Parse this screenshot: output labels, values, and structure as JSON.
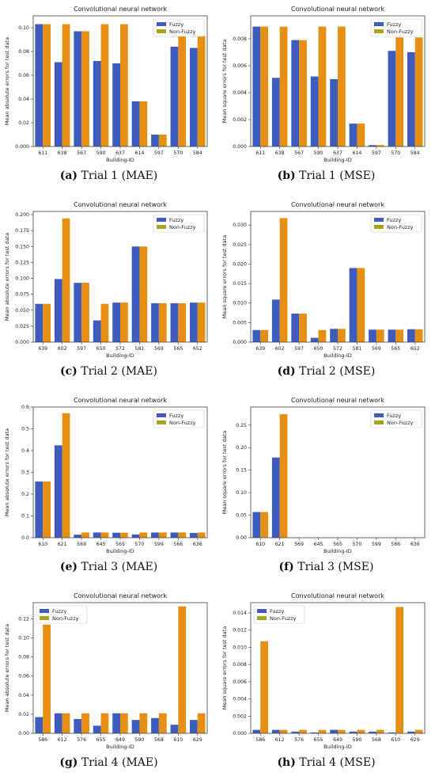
{
  "colors": {
    "fuzzy": "#3e5cbe",
    "nonfuzzy": "#e78f12",
    "nonfuzzy_legend": "#a8a51d",
    "frame": "#444444"
  },
  "chart_data": [
    {
      "id": "p1",
      "type": "bar",
      "title": "Convolutional neural network",
      "xlabel": "Building-ID",
      "ylabel": "Mean absolute errors for test data",
      "ylim": [
        0,
        0.11
      ],
      "yticks": [
        "0.000",
        "0.02",
        "0.04",
        "0.06",
        "0.08",
        "0.10"
      ],
      "yticks_values": [
        0,
        0.02,
        0.04,
        0.06,
        0.08,
        0.1
      ],
      "categories": [
        "611",
        "638",
        "567",
        "590",
        "637",
        "614",
        "597",
        "570",
        "584"
      ],
      "series": [
        {
          "name": "Fuzzy",
          "values": [
            0.103,
            0.071,
            0.097,
            0.072,
            0.07,
            0.038,
            0.01,
            0.084,
            0.083
          ]
        },
        {
          "name": "Non-Fuzzy",
          "values": [
            0.103,
            0.103,
            0.097,
            0.103,
            0.103,
            0.038,
            0.01,
            0.093,
            0.093
          ]
        }
      ],
      "legend": "top-right",
      "caption_label": "(a)",
      "caption_text": "Trial 1 (MAE)"
    },
    {
      "id": "p2",
      "type": "bar",
      "title": "Convolutional neural network",
      "xlabel": "Building-ID",
      "ylabel": "Mean square errors for test data",
      "ylim": [
        0,
        0.0097
      ],
      "yticks": [
        "0.000",
        "0.002",
        "0.004",
        "0.006",
        "0.008"
      ],
      "yticks_values": [
        0,
        0.002,
        0.004,
        0.006,
        0.008
      ],
      "categories": [
        "611",
        "638",
        "567",
        "590",
        "637",
        "614",
        "597",
        "570",
        "584"
      ],
      "series": [
        {
          "name": "Fuzzy",
          "values": [
            0.0089,
            0.0051,
            0.0079,
            0.0052,
            0.005,
            0.0017,
            0.0001,
            0.0071,
            0.007
          ]
        },
        {
          "name": "Non-Fuzzy",
          "values": [
            0.0089,
            0.0089,
            0.0079,
            0.0089,
            0.0089,
            0.0017,
            0.0001,
            0.0081,
            0.0081
          ]
        }
      ],
      "legend": "top-right",
      "caption_label": "(b)",
      "caption_text": "Trial 1 (MSE)"
    },
    {
      "id": "p3",
      "type": "bar",
      "title": "Convolutional neural network",
      "xlabel": "Building-ID",
      "ylabel": "Mean absolute errors for test data",
      "ylim": [
        0,
        0.205
      ],
      "yticks": [
        "0.000",
        "0.025",
        "0.050",
        "0.075",
        "0.100",
        "0.125",
        "0.150",
        "0.175",
        "0.200"
      ],
      "yticks_values": [
        0,
        0.025,
        0.05,
        0.075,
        0.1,
        0.125,
        0.15,
        0.175,
        0.2
      ],
      "categories": [
        "639",
        "602",
        "597",
        "650",
        "572",
        "581",
        "569",
        "565",
        "652"
      ],
      "series": [
        {
          "name": "Fuzzy",
          "values": [
            0.06,
            0.099,
            0.093,
            0.034,
            0.062,
            0.15,
            0.061,
            0.061,
            0.062
          ]
        },
        {
          "name": "Non-Fuzzy",
          "values": [
            0.06,
            0.194,
            0.093,
            0.06,
            0.062,
            0.15,
            0.061,
            0.061,
            0.062
          ]
        }
      ],
      "legend": "top-right",
      "caption_label": "(c)",
      "caption_text": "Trial 2 (MAE)"
    },
    {
      "id": "p4",
      "type": "bar",
      "title": "Convolutional neural network",
      "xlabel": "Building-ID",
      "ylabel": "Mean square errors for test data",
      "ylim": [
        0,
        0.0335
      ],
      "yticks": [
        "0.000",
        "0.005",
        "0.010",
        "0.015",
        "0.020",
        "0.025",
        "0.030"
      ],
      "yticks_values": [
        0,
        0.005,
        0.01,
        0.015,
        0.02,
        0.025,
        0.03
      ],
      "categories": [
        "639",
        "602",
        "597",
        "650",
        "572",
        "581",
        "569",
        "565",
        "652"
      ],
      "series": [
        {
          "name": "Fuzzy",
          "values": [
            0.0031,
            0.0109,
            0.0073,
            0.0011,
            0.0034,
            0.019,
            0.0032,
            0.0032,
            0.0033
          ]
        },
        {
          "name": "Non-Fuzzy",
          "values": [
            0.0031,
            0.0318,
            0.0073,
            0.0031,
            0.0034,
            0.019,
            0.0032,
            0.0032,
            0.0033
          ]
        }
      ],
      "legend": "top-right",
      "caption_label": "(d)",
      "caption_text": "Trial 2 (MSE)"
    },
    {
      "id": "p5",
      "type": "bar",
      "title": "Convolutional neural network",
      "xlabel": "Building-ID",
      "ylabel": "Mean absolute errors for test data",
      "ylim": [
        0,
        0.6
      ],
      "yticks": [
        "0.0",
        "0.1",
        "0.2",
        "0.3",
        "0.4",
        "0.5",
        "0.6"
      ],
      "yticks_values": [
        0,
        0.1,
        0.2,
        0.3,
        0.4,
        0.5,
        0.6
      ],
      "categories": [
        "610",
        "621",
        "569",
        "645",
        "565",
        "570",
        "599",
        "566",
        "636"
      ],
      "series": [
        {
          "name": "Fuzzy",
          "values": [
            0.258,
            0.424,
            0.014,
            0.024,
            0.023,
            0.015,
            0.024,
            0.024,
            0.022
          ]
        },
        {
          "name": "Non-Fuzzy",
          "values": [
            0.258,
            0.572,
            0.024,
            0.024,
            0.023,
            0.024,
            0.024,
            0.024,
            0.024
          ]
        }
      ],
      "legend": "top-right",
      "caption_label": "(e)",
      "caption_text": "Trial 3 (MAE)"
    },
    {
      "id": "p6",
      "type": "bar",
      "title": "Convolutional neural network",
      "xlabel": "Building-ID",
      "ylabel": "Mean square errors for test data",
      "ylim": [
        0,
        0.29
      ],
      "yticks": [
        "0.00",
        "0.05",
        "0.10",
        "0.15",
        "0.20",
        "0.25"
      ],
      "yticks_values": [
        0,
        0.05,
        0.1,
        0.15,
        0.2,
        0.25
      ],
      "categories": [
        "610",
        "621",
        "569",
        "645",
        "565",
        "570",
        "599",
        "566",
        "636"
      ],
      "series": [
        {
          "name": "Fuzzy",
          "values": [
            0.057,
            0.178,
            0.0003,
            0.0004,
            0.0004,
            0.0003,
            0.0004,
            0.0004,
            0.0004
          ]
        },
        {
          "name": "Non-Fuzzy",
          "values": [
            0.057,
            0.274,
            0.0004,
            0.0004,
            0.0004,
            0.0004,
            0.0004,
            0.0004,
            0.0004
          ]
        }
      ],
      "legend": "top-right",
      "caption_label": "(f)",
      "caption_text": "Trial 3 (MSE)"
    },
    {
      "id": "p7",
      "type": "bar",
      "title": "Convolutional neural network",
      "xlabel": "Building-ID",
      "ylabel": "Mean absolute errors for test data",
      "ylim": [
        0,
        0.137
      ],
      "yticks": [
        "0.00",
        "0.02",
        "0.04",
        "0.06",
        "0.08",
        "0.10",
        "0.12"
      ],
      "yticks_values": [
        0,
        0.02,
        0.04,
        0.06,
        0.08,
        0.1,
        0.12
      ],
      "categories": [
        "586",
        "612",
        "576",
        "655",
        "649",
        "590",
        "568",
        "610",
        "629"
      ],
      "series": [
        {
          "name": "Fuzzy",
          "values": [
            0.017,
            0.021,
            0.015,
            0.008,
            0.021,
            0.014,
            0.016,
            0.009,
            0.014
          ]
        },
        {
          "name": "Non-Fuzzy",
          "values": [
            0.114,
            0.021,
            0.021,
            0.021,
            0.021,
            0.021,
            0.021,
            0.133,
            0.021
          ]
        }
      ],
      "legend": "top-left",
      "caption_label": "(g)",
      "caption_text": "Trial 4 (MAE)"
    },
    {
      "id": "p8",
      "type": "bar",
      "title": "Convolutional neural network",
      "xlabel": "Building-ID",
      "ylabel": "Mean square errors for test data",
      "ylim": [
        0,
        0.0152
      ],
      "yticks": [
        "0.000",
        "0.002",
        "0.004",
        "0.006",
        "0.008",
        "0.010",
        "0.012",
        "0.014"
      ],
      "yticks_values": [
        0,
        0.002,
        0.004,
        0.006,
        0.008,
        0.01,
        0.012,
        0.014
      ],
      "categories": [
        "586",
        "612",
        "576",
        "655",
        "649",
        "590",
        "568",
        "610",
        "629"
      ],
      "series": [
        {
          "name": "Fuzzy",
          "values": [
            0.0004,
            0.0004,
            0.0002,
            0.0001,
            0.0004,
            0.0002,
            0.0002,
            0.0001,
            0.0002
          ]
        },
        {
          "name": "Non-Fuzzy",
          "values": [
            0.0107,
            0.0004,
            0.0004,
            0.0004,
            0.0004,
            0.0004,
            0.0004,
            0.0147,
            0.0004
          ]
        }
      ],
      "legend": "top-left",
      "caption_label": "(h)",
      "caption_text": "Trial 4 (MSE)"
    }
  ]
}
